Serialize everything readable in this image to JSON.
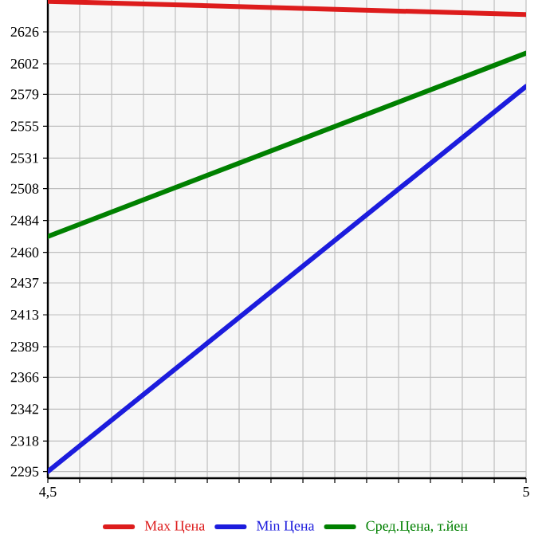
{
  "chart_data": {
    "type": "line",
    "x": [
      4.5,
      5
    ],
    "series": [
      {
        "name": "Max Цена",
        "color": "#dd1c1c",
        "values": [
          2649,
          2639
        ]
      },
      {
        "name": "Min Цена",
        "color": "#1c1cdd",
        "values": [
          2295,
          2585
        ]
      },
      {
        "name": "Сред.Цена, т.йен",
        "color": "#008000",
        "values": [
          2472,
          2610
        ]
      }
    ],
    "xlim": [
      4.5,
      5
    ],
    "xticks": [
      {
        "value": 4.5,
        "label": "4,5"
      },
      {
        "value": 4.5333,
        "label": null
      },
      {
        "value": 4.5667,
        "label": null
      },
      {
        "value": 4.6,
        "label": null
      },
      {
        "value": 4.6333,
        "label": null
      },
      {
        "value": 4.6667,
        "label": null
      },
      {
        "value": 4.7,
        "label": null
      },
      {
        "value": 4.7333,
        "label": null
      },
      {
        "value": 4.7667,
        "label": null
      },
      {
        "value": 4.8,
        "label": null
      },
      {
        "value": 4.8333,
        "label": null
      },
      {
        "value": 4.8667,
        "label": null
      },
      {
        "value": 4.9,
        "label": null
      },
      {
        "value": 4.9333,
        "label": null
      },
      {
        "value": 4.9667,
        "label": null
      },
      5
    ],
    "ylim": [
      2290,
      2650
    ],
    "yticks": [
      2295,
      2318,
      2342,
      2366,
      2389,
      2413,
      2437,
      2460,
      2484,
      2508,
      2531,
      2555,
      2579,
      2602,
      2626
    ],
    "grid": true,
    "legend": "bottom",
    "marker": "none",
    "line_style": "solid"
  }
}
